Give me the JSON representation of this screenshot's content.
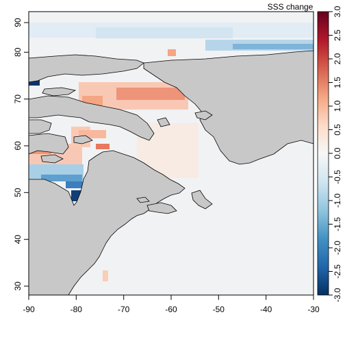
{
  "map": {
    "type": "heatmap",
    "region": "North Atlantic / Labrador Sea",
    "x_ticks": [
      "-90",
      "-80",
      "-70",
      "-60",
      "-50",
      "-40",
      "-30"
    ],
    "y_ticks": [
      "30",
      "40",
      "50",
      "60",
      "70",
      "80",
      "90"
    ],
    "xlim": [
      -90,
      -30
    ],
    "ylim": [
      28,
      91
    ],
    "land_color": "#c8c8c8",
    "ocean_no_data_color": "#ffffff"
  },
  "colorbar": {
    "title": "SSS change",
    "ticks": [
      "-3.0",
      "-2.5",
      "-2.0",
      "-1.5",
      "-1.0",
      "-0.5",
      "0.0",
      "0.5",
      "1.0",
      "1.5",
      "2.0",
      "2.5",
      "3.0"
    ],
    "range": [
      -3.0,
      3.0
    ],
    "colors_low_to_high": [
      "#053061",
      "#2166ac",
      "#4393c3",
      "#92c5de",
      "#d1e5f0",
      "#f7f7f7",
      "#fddbc7",
      "#f4a582",
      "#d6604d",
      "#b2182b",
      "#67001f"
    ]
  }
}
